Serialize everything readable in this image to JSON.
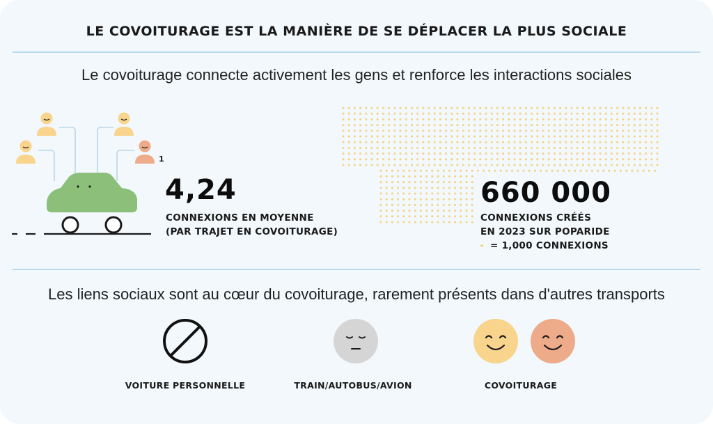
{
  "header": {
    "title": "LE COVOITURAGE EST LA MANIÈRE DE SE DÉPLACER LA PLUS SOCIALE",
    "subtitle": "Le covoiturage connecte activement les gens et renforce les interactions sociales"
  },
  "stat_left": {
    "value": "4,24",
    "line1": "CONNEXIONS EN MOYENNE",
    "line2": "(PAR TRAJET EN COVOITURAGE)",
    "footnote_marker": "1"
  },
  "stat_right": {
    "value": "660 000",
    "line1": "CONNEXIONS CRÉÉS",
    "line2": "EN 2023 SUR POPARIDE",
    "legend": "= 1,000 CONNEXIONS"
  },
  "section2": {
    "subtitle": "Les liens sociaux sont au cœur du covoiturage, rarement présents dans d'autres transports",
    "items": [
      {
        "label": "VOITURE PERSONNELLE",
        "icon": "prohibited-icon"
      },
      {
        "label": "TRAIN/AUTOBUS/AVION",
        "icon": "neutral-face-icon"
      },
      {
        "label": "COVOITURAGE",
        "icon": "happy-faces-icon"
      }
    ]
  },
  "colors": {
    "background": "#f2f8fc",
    "rule": "#b9d9ec",
    "car": "#8cc07a",
    "person_yellow": "#f8d48c",
    "person_orange": "#eeab8a",
    "dot": "#f6d38a",
    "neutral_face": "#d5d5d5"
  }
}
